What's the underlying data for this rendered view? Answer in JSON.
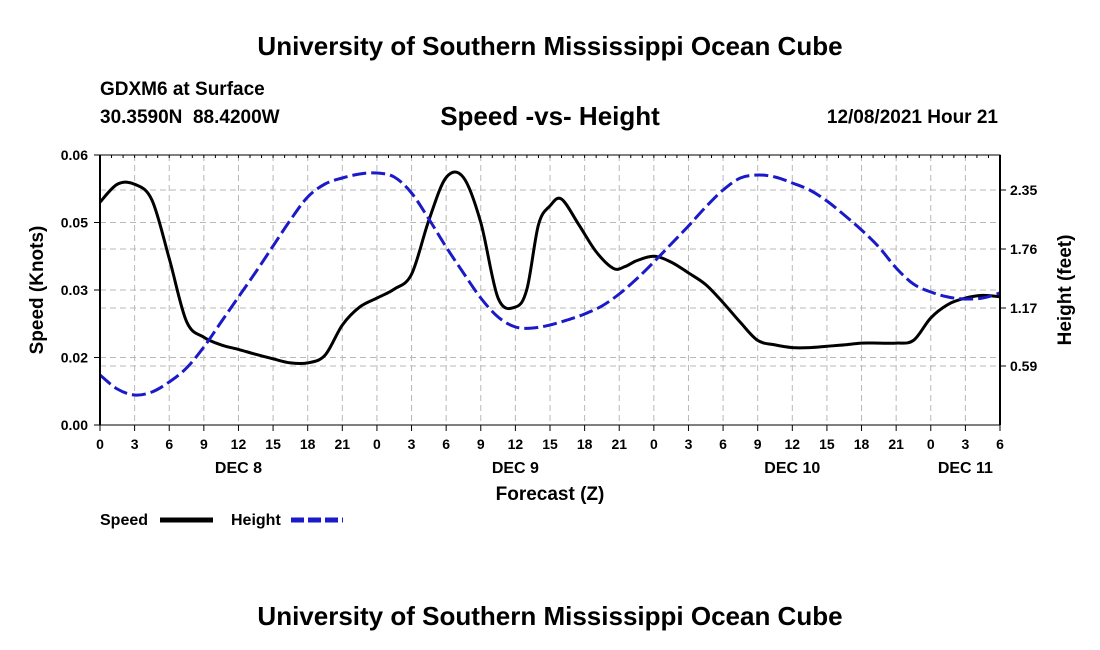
{
  "header": {
    "title": "University of Southern Mississippi Ocean Cube",
    "station": "GDXM6 at Surface",
    "coords": "30.3590N  88.4200W",
    "datetime": "12/08/2021 Hour 21"
  },
  "footer": {
    "title": "University of Southern Mississippi Ocean Cube"
  },
  "chart_data": {
    "type": "line",
    "title": "Speed -vs- Height",
    "xlabel": "Forecast (Z)",
    "ylabel": "Speed (Knots)",
    "ylabel_right": "Height (feet)",
    "x_hours_range": [
      0,
      78
    ],
    "x_tick_labels": [
      "0",
      "3",
      "6",
      "9",
      "12",
      "15",
      "18",
      "21",
      "0",
      "3",
      "6",
      "9",
      "12",
      "15",
      "18",
      "21",
      "0",
      "3",
      "6",
      "9",
      "12",
      "15",
      "18",
      "21",
      "0",
      "3",
      "6"
    ],
    "day_labels": [
      {
        "label": "DEC 8",
        "hour": 12
      },
      {
        "label": "DEC 9",
        "hour": 36
      },
      {
        "label": "DEC 10",
        "hour": 60
      },
      {
        "label": "DEC 11",
        "hour": 75
      }
    ],
    "ylim": [
      0,
      0.06
    ],
    "y_tick_labels": [
      "0.00",
      "0.02",
      "0.03",
      "0.05",
      "0.06"
    ],
    "y2lim": [
      0.0,
      2.7
    ],
    "y2_tick_labels": [
      "0.59",
      "1.17",
      "1.76",
      "2.35"
    ],
    "y2_tick_values": [
      0.59,
      1.17,
      1.76,
      2.35
    ],
    "grid": true,
    "series": [
      {
        "name": "Speed",
        "color": "#000000",
        "dash": "solid",
        "axis": "left",
        "x": [
          0,
          1.5,
          3,
          4.5,
          6,
          7.5,
          9,
          10.5,
          12,
          13.5,
          15,
          16.5,
          18,
          19.5,
          21,
          22.5,
          24,
          25.5,
          27,
          28.5,
          30,
          31.5,
          33,
          34.5,
          36,
          37,
          38,
          39,
          40,
          41.5,
          43,
          44.5,
          45.5,
          46.5,
          48,
          49.5,
          51,
          52.5,
          54,
          55.5,
          57,
          58.5,
          60,
          61.5,
          63,
          64.5,
          66,
          67.5,
          69,
          70.5,
          72,
          73.5,
          75,
          76.5,
          78
        ],
        "values": [
          0.0495,
          0.0535,
          0.0535,
          0.05,
          0.037,
          0.023,
          0.0195,
          0.0178,
          0.0168,
          0.0157,
          0.0147,
          0.0138,
          0.0138,
          0.0155,
          0.0222,
          0.0262,
          0.0282,
          0.0302,
          0.0335,
          0.0455,
          0.055,
          0.055,
          0.045,
          0.0282,
          0.0262,
          0.0302,
          0.0445,
          0.0487,
          0.0502,
          0.0445,
          0.0385,
          0.0348,
          0.0352,
          0.0365,
          0.0375,
          0.0362,
          0.0338,
          0.0312,
          0.0272,
          0.0228,
          0.0188,
          0.0178,
          0.0172,
          0.0172,
          0.0175,
          0.0178,
          0.0182,
          0.0182,
          0.0182,
          0.0188,
          0.0238,
          0.0268,
          0.0282,
          0.0288,
          0.0285
        ]
      },
      {
        "name": "Height",
        "color": "#1a1ac8",
        "dash": "dashed",
        "axis": "right",
        "x": [
          0,
          1.5,
          3,
          4.5,
          6,
          7.5,
          9,
          10.5,
          12,
          13.5,
          15,
          16.5,
          18,
          19.5,
          21,
          22.5,
          24,
          25.5,
          27,
          28.5,
          30,
          31.5,
          33,
          34.5,
          36,
          37.5,
          39,
          40.5,
          42,
          43.5,
          45,
          46.5,
          48,
          49.5,
          51,
          52.5,
          54,
          55.5,
          57,
          58.5,
          60,
          61.5,
          63,
          64.5,
          66,
          67.5,
          69,
          70.5,
          72,
          73.5,
          75,
          76.5,
          78
        ],
        "values": [
          0.5,
          0.36,
          0.3,
          0.33,
          0.43,
          0.57,
          0.78,
          1.03,
          1.28,
          1.53,
          1.79,
          2.05,
          2.28,
          2.41,
          2.47,
          2.51,
          2.52,
          2.48,
          2.32,
          2.06,
          1.78,
          1.52,
          1.27,
          1.08,
          0.98,
          0.97,
          1.0,
          1.05,
          1.11,
          1.19,
          1.31,
          1.46,
          1.63,
          1.81,
          1.99,
          2.18,
          2.35,
          2.47,
          2.5,
          2.48,
          2.42,
          2.35,
          2.24,
          2.1,
          1.95,
          1.78,
          1.57,
          1.41,
          1.33,
          1.28,
          1.26,
          1.27,
          1.32
        ]
      }
    ],
    "legend": {
      "position": "bottom-left"
    }
  }
}
